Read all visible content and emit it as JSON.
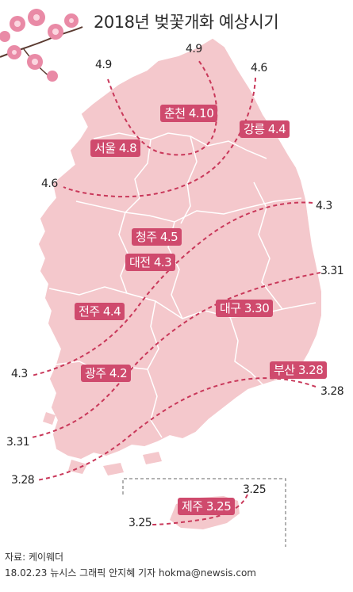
{
  "title": "2018년 벚꽃개화 예상시기",
  "colors": {
    "land": "#f4c8cc",
    "boundary": "#ffffff",
    "isoline": "#c9385a",
    "label_bg": "#cf4a6d",
    "blossom": "#e98aa6"
  },
  "cities": {
    "chuncheon": "춘천 4.10",
    "gangneung": "강릉 4.4",
    "seoul": "서울 4.8",
    "cheongju": "청주 4.5",
    "daejeon": "대전 4.3",
    "jeonju": "전주 4.4",
    "daegu": "대구 3.30",
    "gwangju": "광주 4.2",
    "busan": "부산 3.28",
    "jeju": "제주 3.25"
  },
  "isolines": {
    "l49_left": "4.9",
    "l49_top": "4.9",
    "l46_top": "4.6",
    "l46_left": "4.6",
    "l43_right": "4.3",
    "l43_left": "4.3",
    "l331_right": "3.31",
    "l331_left": "3.31",
    "l328_right": "3.28",
    "l328_left": "3.28",
    "l325_right": "3.25",
    "l325_left": "3.25"
  },
  "footer": {
    "source": "자료:  케이웨더",
    "credit": "18.02.23 뉴시스 그래픽 안지혜 기자 hokma@newsis.com"
  }
}
